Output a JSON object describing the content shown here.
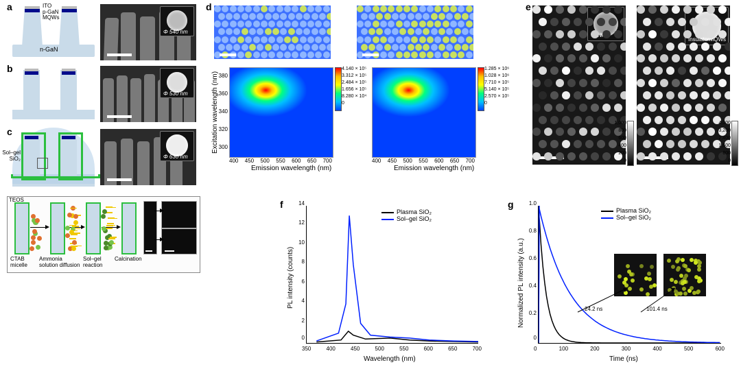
{
  "panels": {
    "a": "a",
    "b": "b",
    "c": "c",
    "d": "d",
    "e": "e",
    "f": "f",
    "g": "g"
  },
  "schematic_labels": {
    "ito": "ITO",
    "pgan": "p-GaN",
    "mqws": "MQWs",
    "ngan": "n-GaN",
    "solgel": "Sol–gel\nSiO₂",
    "teos": "TEOS",
    "ctab": "CTAB\nmicelle",
    "ammonia": "Ammonia\nsolution diffusion",
    "solgel_step": "Sol–gel\nreaction",
    "calc": "Calcination"
  },
  "sem_diameters": {
    "a": "Φ 540 nm",
    "b": "Φ 530 nm",
    "c": "Φ 630 nm"
  },
  "panel_d": {
    "ylabel": "Excitation wavelength (nm)",
    "xlabel": "Emission wavelength (nm)",
    "xticks": [
      "400",
      "450",
      "500",
      "550",
      "600",
      "650",
      "700"
    ],
    "yticks": [
      "300",
      "320",
      "340",
      "360",
      "380"
    ],
    "left_colorbar": [
      "4.140 × 10⁵",
      "3.312 × 10⁵",
      "2.484 × 10⁵",
      "1.656 × 10⁵",
      "8.280 × 10⁴",
      "0"
    ],
    "right_colorbar": [
      "1.285 × 10⁶",
      "1.028 × 10⁶",
      "7.710 × 10⁵",
      "5.140 × 10⁵",
      "2.570 × 10⁵",
      "0"
    ]
  },
  "panel_e": {
    "left_inset": "NRC",
    "right_inset_a": "Insulator",
    "right_inset_b": "MQWs",
    "left_bar_ticks": [
      "1,000",
      "800",
      "600",
      "400",
      "200",
      "0"
    ],
    "right_bar_ticks": [
      "4,000",
      "3,200",
      "2,400",
      "1,600",
      "800",
      "0"
    ]
  },
  "panel_f": {
    "ylabel": "PL intensity (counts)",
    "xlabel": "Wavelength (nm)",
    "xticks": [
      "350",
      "400",
      "450",
      "500",
      "550",
      "600",
      "650",
      "700"
    ],
    "yticks": [
      "0",
      "2",
      "4",
      "6",
      "8",
      "10",
      "12",
      "14"
    ],
    "legend_plasma": "Plasma SiO₂",
    "legend_solgel": "Sol–gel SiO₂",
    "chart": {
      "type": "line",
      "xlim": [
        350,
        700
      ],
      "ylim": [
        0,
        14
      ],
      "series": [
        {
          "name": "plasma",
          "color": "#000000",
          "line_width": 1.5,
          "points": [
            [
              370,
              0.1
            ],
            [
              420,
              0.3
            ],
            [
              435,
              1.2
            ],
            [
              445,
              0.8
            ],
            [
              470,
              0.4
            ],
            [
              520,
              0.5
            ],
            [
              560,
              0.3
            ],
            [
              600,
              0.2
            ],
            [
              650,
              0.15
            ],
            [
              700,
              0.1
            ]
          ]
        },
        {
          "name": "solgel",
          "color": "#0020ff",
          "line_width": 1.5,
          "points": [
            [
              370,
              0.2
            ],
            [
              415,
              1.0
            ],
            [
              430,
              4.0
            ],
            [
              437,
              13.0
            ],
            [
              445,
              8.0
            ],
            [
              460,
              2.0
            ],
            [
              480,
              0.8
            ],
            [
              520,
              0.6
            ],
            [
              560,
              0.5
            ],
            [
              600,
              0.3
            ],
            [
              650,
              0.2
            ],
            [
              700,
              0.15
            ]
          ]
        }
      ]
    }
  },
  "panel_g": {
    "ylabel": "Normalized PL intensity (a.u.)",
    "xlabel": "Time (ns)",
    "xticks": [
      "0",
      "100",
      "200",
      "300",
      "400",
      "500",
      "600"
    ],
    "yticks": [
      "0",
      "0.2",
      "0.4",
      "0.6",
      "0.8",
      "1.0"
    ],
    "legend_plasma": "Plasma SiO₂",
    "legend_solgel": "Sol–gel SiO₂",
    "tau_plasma": "24.2 ns",
    "tau_solgel": "101.4 ns",
    "chart": {
      "type": "decay",
      "xlim": [
        0,
        600
      ],
      "ylim": [
        0,
        1.0
      ],
      "series": [
        {
          "name": "plasma",
          "color": "#000000",
          "tau": 24.2
        },
        {
          "name": "solgel",
          "color": "#0020ff",
          "tau": 101.4
        }
      ]
    }
  },
  "colors": {
    "schematic_fill": "#c9dbe9",
    "mqw_blue": "#000b8b",
    "solgel_green": "#2bbf3f",
    "plasma_line": "#000000",
    "solgel_line": "#0020ff",
    "dot_bright": "#c8e060",
    "dot_dim": "#5aa0ff"
  }
}
